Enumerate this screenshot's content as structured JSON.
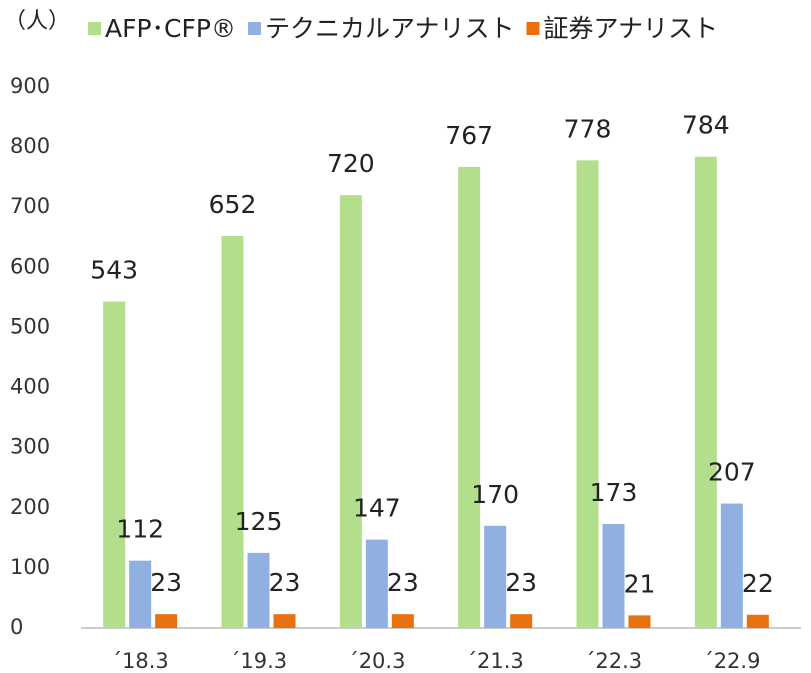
{
  "chart_data": {
    "type": "bar",
    "unit_label": "（人）",
    "categories": [
      "´18.3",
      "´19.3",
      "´20.3",
      "´21.3",
      "´22.3",
      "´22.9"
    ],
    "series": [
      {
        "name": "AFP･CFP®",
        "color": "#b3de8c",
        "values": [
          543,
          652,
          720,
          767,
          778,
          784
        ]
      },
      {
        "name": "テクニカルアナリスト",
        "color": "#8fb0e0",
        "values": [
          112,
          125,
          147,
          170,
          173,
          207
        ]
      },
      {
        "name": "証券アナリスト",
        "color": "#e8700e",
        "values": [
          23,
          23,
          23,
          23,
          21,
          22
        ]
      }
    ],
    "ylim": [
      0,
      900
    ],
    "yticks": [
      0,
      100,
      200,
      300,
      400,
      500,
      600,
      700,
      800,
      900
    ],
    "grid": false,
    "legend": "top"
  }
}
